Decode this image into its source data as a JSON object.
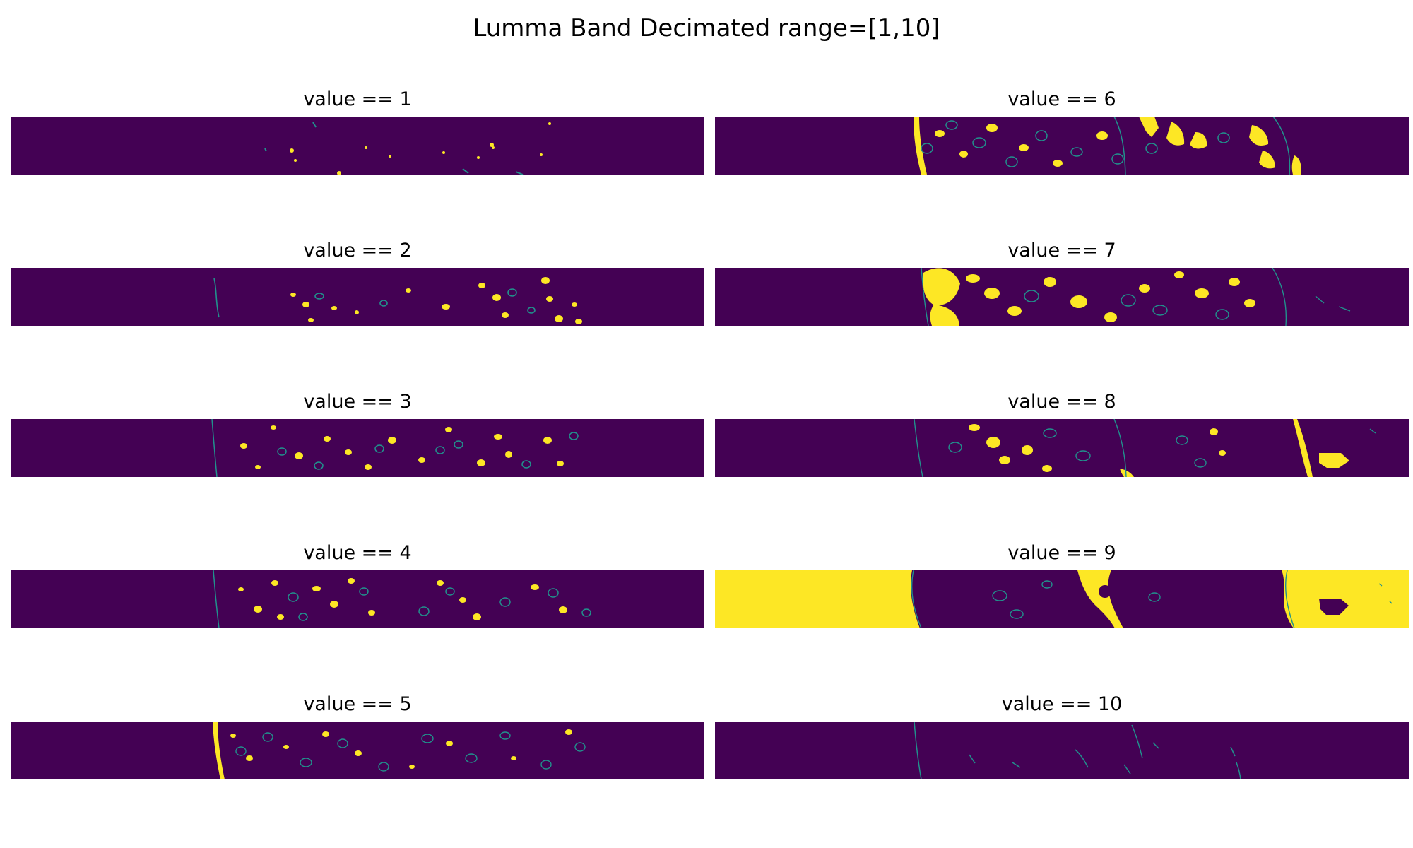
{
  "figure": {
    "title": "Lumma Band Decimated range=[1,10]"
  },
  "colors": {
    "background_value": "#440154",
    "mask_value": "#fde725",
    "edge_value": "#21918c"
  },
  "panels": [
    {
      "label": "value == 1",
      "value": 1
    },
    {
      "label": "value == 2",
      "value": 2
    },
    {
      "label": "value == 3",
      "value": 3
    },
    {
      "label": "value == 4",
      "value": 4
    },
    {
      "label": "value == 5",
      "value": 5
    },
    {
      "label": "value == 6",
      "value": 6
    },
    {
      "label": "value == 7",
      "value": 7
    },
    {
      "label": "value == 8",
      "value": 8
    },
    {
      "label": "value == 9",
      "value": 9
    },
    {
      "label": "value == 10",
      "value": 10
    }
  ]
}
